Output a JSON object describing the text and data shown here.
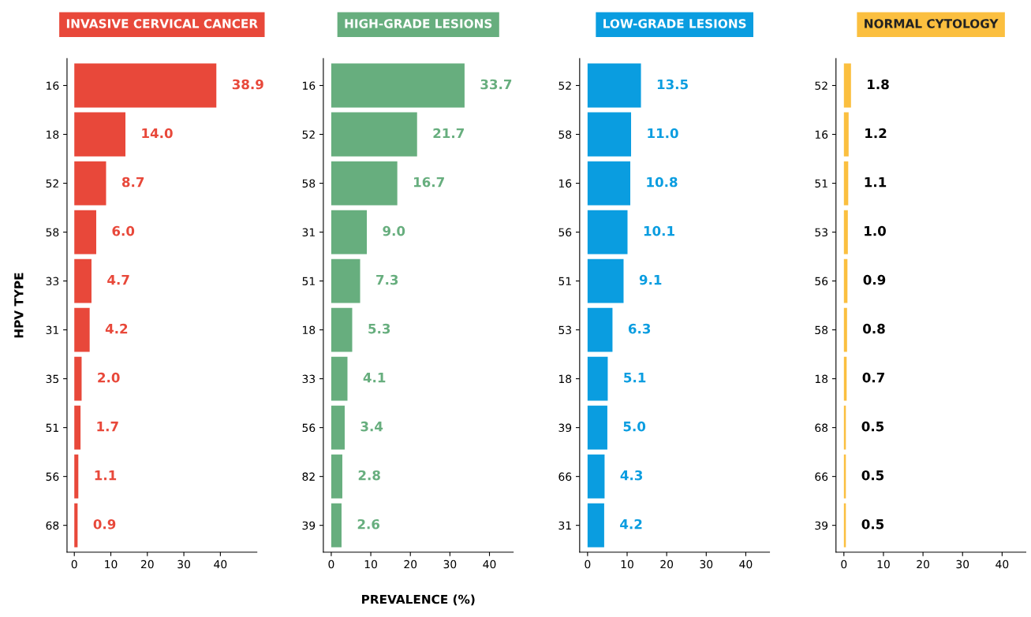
{
  "chart_data": [
    {
      "type": "bar",
      "orientation": "horizontal",
      "title": "INVASIVE CERVICAL CANCER",
      "ylabel": "HPV TYPE",
      "categories": [
        "16",
        "18",
        "52",
        "58",
        "33",
        "31",
        "35",
        "51",
        "56",
        "68"
      ],
      "values": [
        38.9,
        14.0,
        8.7,
        6.0,
        4.7,
        4.2,
        2.0,
        1.7,
        1.1,
        0.9
      ],
      "value_labels": [
        "38.9",
        "14.0",
        "8.7",
        "6.0",
        "4.7",
        "4.2",
        "2.0",
        "1.7",
        "1.1",
        "0.9"
      ],
      "color": "#e8483a",
      "xlim": [
        -2,
        50
      ],
      "xticks": [
        0,
        10,
        20,
        30,
        40
      ],
      "grid": false
    },
    {
      "type": "bar",
      "orientation": "horizontal",
      "title": "HIGH-GRADE LESIONS",
      "xlabel": "PREVALENCE (%)",
      "categories": [
        "16",
        "52",
        "58",
        "31",
        "51",
        "18",
        "33",
        "56",
        "82",
        "39"
      ],
      "values": [
        33.7,
        21.7,
        16.7,
        9.0,
        7.3,
        5.3,
        4.1,
        3.4,
        2.8,
        2.6
      ],
      "value_labels": [
        "33.7",
        "21.7",
        "16.7",
        "9.0",
        "7.3",
        "5.3",
        "4.1",
        "3.4",
        "2.8",
        "2.6"
      ],
      "color": "#67ae7e",
      "xlim": [
        -2,
        46
      ],
      "xticks": [
        0,
        10,
        20,
        30,
        40
      ],
      "grid": false
    },
    {
      "type": "bar",
      "orientation": "horizontal",
      "title": "LOW-GRADE LESIONS",
      "categories": [
        "52",
        "58",
        "16",
        "56",
        "51",
        "53",
        "18",
        "39",
        "66",
        "31"
      ],
      "values": [
        13.5,
        11.0,
        10.8,
        10.1,
        9.1,
        6.3,
        5.1,
        5.0,
        4.3,
        4.2
      ],
      "value_labels": [
        "13.5",
        "11.0",
        "10.8",
        "10.1",
        "9.1",
        "6.3",
        "5.1",
        "5.0",
        "4.3",
        "4.2"
      ],
      "color": "#0a9de0",
      "xlim": [
        -2,
        46
      ],
      "xticks": [
        0,
        10,
        20,
        30,
        40
      ],
      "grid": false
    },
    {
      "type": "bar",
      "orientation": "horizontal",
      "title": "NORMAL CYTOLOGY",
      "categories": [
        "52",
        "16",
        "51",
        "53",
        "56",
        "58",
        "18",
        "68",
        "66",
        "39"
      ],
      "values": [
        1.8,
        1.2,
        1.1,
        1.0,
        0.9,
        0.8,
        0.7,
        0.5,
        0.5,
        0.5
      ],
      "value_labels": [
        "1.8",
        "1.2",
        "1.1",
        "1.0",
        "0.9",
        "0.8",
        "0.7",
        "0.5",
        "0.5",
        "0.5"
      ],
      "color": "#fbbf3f",
      "xlim": [
        -2,
        46
      ],
      "xticks": [
        0,
        10,
        20,
        30,
        40
      ],
      "grid": false
    }
  ]
}
